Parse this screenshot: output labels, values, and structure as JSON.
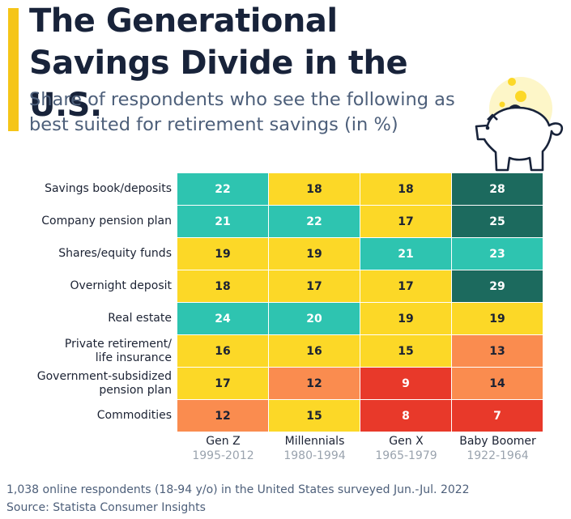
{
  "title": "The Generational Savings Divide in the U.S.",
  "subtitle": "Share of respondents who see the following as best suited for retirement savings (in %)",
  "colors": {
    "accent": "#f5c518",
    "teal": "#2ec4b0",
    "yellow": "#fcd827",
    "orange": "#fa8c4f",
    "red": "#e8392a",
    "dark_green": "#1c6a5e"
  },
  "chart_data": {
    "type": "heatmap",
    "rows": [
      [
        "Savings book/deposits"
      ],
      [
        "Company pension plan"
      ],
      [
        "Shares/equity funds"
      ],
      [
        "Overnight deposit"
      ],
      [
        "Real estate"
      ],
      [
        "Private retirement/",
        "life insurance"
      ],
      [
        "Government-subsidized",
        "pension plan"
      ],
      [
        "Commodities"
      ]
    ],
    "columns": [
      {
        "name": "Gen Z",
        "years": "1995-2012"
      },
      {
        "name": "Millennials",
        "years": "1980-1994"
      },
      {
        "name": "Gen X",
        "years": "1965-1979"
      },
      {
        "name": "Baby Boomer",
        "years": "1922-1964"
      }
    ],
    "values": [
      [
        22,
        18,
        18,
        28
      ],
      [
        21,
        22,
        17,
        25
      ],
      [
        19,
        19,
        21,
        23
      ],
      [
        18,
        17,
        17,
        29
      ],
      [
        24,
        20,
        19,
        19
      ],
      [
        16,
        16,
        15,
        13
      ],
      [
        17,
        12,
        9,
        14
      ],
      [
        12,
        15,
        8,
        7
      ]
    ],
    "color_classes": [
      [
        "teal",
        "yellow",
        "yellow",
        "dark_green"
      ],
      [
        "teal",
        "teal",
        "yellow",
        "dark_green"
      ],
      [
        "yellow",
        "yellow",
        "teal",
        "teal"
      ],
      [
        "yellow",
        "yellow",
        "yellow",
        "dark_green"
      ],
      [
        "teal",
        "teal",
        "yellow",
        "yellow"
      ],
      [
        "yellow",
        "yellow",
        "yellow",
        "orange"
      ],
      [
        "yellow",
        "orange",
        "red",
        "orange"
      ],
      [
        "orange",
        "yellow",
        "red",
        "red"
      ]
    ]
  },
  "footer": {
    "note": "1,038 online respondents (18-94 y/o) in the United States surveyed Jun.-Jul. 2022",
    "source": "Source: Statista Consumer Insights"
  },
  "illustration": {
    "icon": "piggy-bank-icon"
  }
}
